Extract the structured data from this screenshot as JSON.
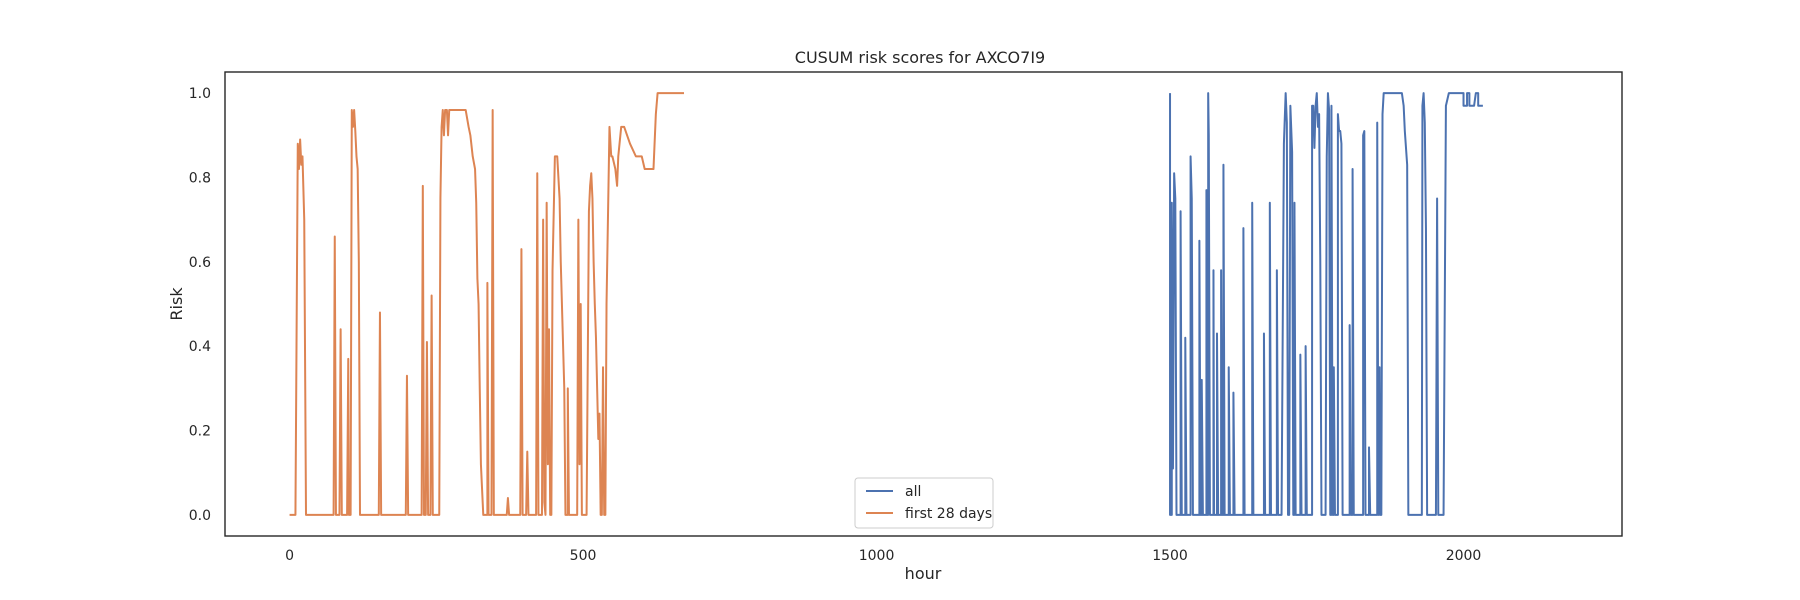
{
  "chart_data": {
    "type": "line",
    "title": "CUSUM risk scores for AXCO7I9",
    "xlabel": "hour",
    "ylabel": "Risk",
    "xlim": [
      -110,
      2270
    ],
    "ylim": [
      -0.05,
      1.05
    ],
    "xticks": [
      0,
      500,
      1000,
      1500,
      2000
    ],
    "xtick_labels": [
      "0",
      "500",
      "1000",
      "1500",
      "2000"
    ],
    "yticks": [
      0.0,
      0.2,
      0.4,
      0.6,
      0.8,
      1.0
    ],
    "ytick_labels": [
      "0.0",
      "0.2",
      "0.4",
      "0.6",
      "0.8",
      "1.0"
    ],
    "grid": false,
    "legend_position": "lower center",
    "series": [
      {
        "name": "all",
        "color": "#4c72b0",
        "points": [
          [
            1500,
            1.0
          ],
          [
            1500,
            0.0
          ],
          [
            1503,
            0.0
          ],
          [
            1503,
            0.74
          ],
          [
            1505,
            0.11
          ],
          [
            1507,
            0.81
          ],
          [
            1509,
            0.75
          ],
          [
            1511,
            0.0
          ],
          [
            1518,
            0.0
          ],
          [
            1518,
            0.72
          ],
          [
            1520,
            0.0
          ],
          [
            1526,
            0.0
          ],
          [
            1526,
            0.42
          ],
          [
            1528,
            0.0
          ],
          [
            1535,
            0.0
          ],
          [
            1535,
            0.85
          ],
          [
            1537,
            0.75
          ],
          [
            1539,
            0.0
          ],
          [
            1550,
            0.0
          ],
          [
            1550,
            0.65
          ],
          [
            1552,
            0.0
          ],
          [
            1554,
            0.0
          ],
          [
            1554,
            0.32
          ],
          [
            1556,
            0.0
          ],
          [
            1562,
            0.0
          ],
          [
            1562,
            0.77
          ],
          [
            1563,
            0.0
          ],
          [
            1565,
            0.0
          ],
          [
            1565,
            1.0
          ],
          [
            1566,
            0.9
          ],
          [
            1568,
            0.0
          ],
          [
            1574,
            0.0
          ],
          [
            1574,
            0.58
          ],
          [
            1575,
            0.0
          ],
          [
            1580,
            0.0
          ],
          [
            1580,
            0.43
          ],
          [
            1582,
            0.0
          ],
          [
            1587,
            0.0
          ],
          [
            1587,
            0.58
          ],
          [
            1589,
            0.0
          ],
          [
            1591,
            0.0
          ],
          [
            1591,
            0.83
          ],
          [
            1593,
            0.0
          ],
          [
            1600,
            0.0
          ],
          [
            1600,
            0.35
          ],
          [
            1602,
            0.0
          ],
          [
            1608,
            0.0
          ],
          [
            1608,
            0.29
          ],
          [
            1610,
            0.0
          ],
          [
            1625,
            0.0
          ],
          [
            1625,
            0.68
          ],
          [
            1627,
            0.0
          ],
          [
            1640,
            0.0
          ],
          [
            1640,
            0.74
          ],
          [
            1642,
            0.0
          ],
          [
            1660,
            0.0
          ],
          [
            1660,
            0.43
          ],
          [
            1662,
            0.0
          ],
          [
            1670,
            0.0
          ],
          [
            1670,
            0.74
          ],
          [
            1672,
            0.0
          ],
          [
            1682,
            0.0
          ],
          [
            1682,
            0.58
          ],
          [
            1684,
            0.0
          ],
          [
            1690,
            0.0
          ],
          [
            1694,
            0.88
          ],
          [
            1697,
            1.0
          ],
          [
            1699,
            0.93
          ],
          [
            1701,
            0.0
          ],
          [
            1703,
            0.0
          ],
          [
            1705,
            0.97
          ],
          [
            1708,
            0.86
          ],
          [
            1710,
            0.0
          ],
          [
            1712,
            0.0
          ],
          [
            1712,
            0.74
          ],
          [
            1714,
            0.0
          ],
          [
            1722,
            0.0
          ],
          [
            1722,
            0.38
          ],
          [
            1724,
            0.0
          ],
          [
            1731,
            0.0
          ],
          [
            1731,
            0.4
          ],
          [
            1733,
            0.0
          ],
          [
            1742,
            0.0
          ],
          [
            1742,
            0.97
          ],
          [
            1744,
            0.97
          ],
          [
            1746,
            0.87
          ],
          [
            1748,
            0.97
          ],
          [
            1750,
            1.0
          ],
          [
            1752,
            0.92
          ],
          [
            1754,
            0.95
          ],
          [
            1756,
            0.6
          ],
          [
            1758,
            0.0
          ],
          [
            1765,
            0.0
          ],
          [
            1767,
            0.85
          ],
          [
            1769,
            1.0
          ],
          [
            1771,
            0.96
          ],
          [
            1773,
            0.0
          ],
          [
            1775,
            0.0
          ],
          [
            1775,
            0.97
          ],
          [
            1777,
            0.0
          ],
          [
            1779,
            0.0
          ],
          [
            1779,
            0.35
          ],
          [
            1781,
            0.0
          ],
          [
            1786,
            0.0
          ],
          [
            1786,
            0.95
          ],
          [
            1788,
            0.91
          ],
          [
            1790,
            0.91
          ],
          [
            1792,
            0.88
          ],
          [
            1794,
            0.0
          ],
          [
            1806,
            0.0
          ],
          [
            1806,
            0.45
          ],
          [
            1808,
            0.0
          ],
          [
            1811,
            0.0
          ],
          [
            1811,
            0.82
          ],
          [
            1813,
            0.0
          ],
          [
            1829,
            0.0
          ],
          [
            1829,
            0.9
          ],
          [
            1831,
            0.91
          ],
          [
            1833,
            0.0
          ],
          [
            1839,
            0.0
          ],
          [
            1839,
            0.16
          ],
          [
            1841,
            0.0
          ],
          [
            1853,
            0.0
          ],
          [
            1853,
            0.93
          ],
          [
            1855,
            0.0
          ],
          [
            1856,
            0.0
          ],
          [
            1857,
            0.35
          ],
          [
            1858,
            0.0
          ],
          [
            1860,
            0.0
          ],
          [
            1862,
            0.95
          ],
          [
            1864,
            1.0
          ],
          [
            1895,
            1.0
          ],
          [
            1898,
            0.97
          ],
          [
            1900,
            0.91
          ],
          [
            1904,
            0.83
          ],
          [
            1906,
            0.0
          ],
          [
            1929,
            0.0
          ],
          [
            1930,
            0.97
          ],
          [
            1932,
            1.0
          ],
          [
            1934,
            0.93
          ],
          [
            1936,
            0.68
          ],
          [
            1938,
            0.0
          ],
          [
            1953,
            0.0
          ],
          [
            1953,
            0.0
          ],
          [
            1955,
            0.75
          ],
          [
            1957,
            0.0
          ],
          [
            1966,
            0.0
          ],
          [
            1970,
            0.97
          ],
          [
            1975,
            1.0
          ],
          [
            1990,
            1.0
          ],
          [
            2000,
            1.0
          ],
          [
            2000,
            0.97
          ],
          [
            2006,
            0.97
          ],
          [
            2006,
            1.0
          ],
          [
            2010,
            1.0
          ],
          [
            2010,
            0.97
          ],
          [
            2012,
            0.97
          ],
          [
            2015,
            0.97
          ],
          [
            2018,
            0.97
          ],
          [
            2021,
            1.0
          ],
          [
            2025,
            1.0
          ],
          [
            2025,
            0.97
          ],
          [
            2032,
            0.97
          ],
          [
            2033,
            0.97
          ],
          [
            2033,
            0.97
          ],
          [
            2033,
            0.97
          ]
        ]
      },
      {
        "name": "first 28 days",
        "color": "#dd8452",
        "points": [
          [
            0,
            0.0
          ],
          [
            10,
            0.0
          ],
          [
            14,
            0.88
          ],
          [
            16,
            0.82
          ],
          [
            18,
            0.89
          ],
          [
            20,
            0.83
          ],
          [
            22,
            0.85
          ],
          [
            25,
            0.7
          ],
          [
            28,
            0.0
          ],
          [
            75,
            0.0
          ],
          [
            77,
            0.66
          ],
          [
            79,
            0.0
          ],
          [
            85,
            0.0
          ],
          [
            87,
            0.44
          ],
          [
            89,
            0.0
          ],
          [
            98,
            0.0
          ],
          [
            100,
            0.37
          ],
          [
            101,
            0.0
          ],
          [
            104,
            0.0
          ],
          [
            106,
            0.96
          ],
          [
            108,
            0.92
          ],
          [
            110,
            0.96
          ],
          [
            112,
            0.91
          ],
          [
            114,
            0.85
          ],
          [
            116,
            0.82
          ],
          [
            118,
            0.6
          ],
          [
            120,
            0.0
          ],
          [
            152,
            0.0
          ],
          [
            154,
            0.48
          ],
          [
            156,
            0.0
          ],
          [
            198,
            0.0
          ],
          [
            200,
            0.33
          ],
          [
            202,
            0.0
          ],
          [
            225,
            0.0
          ],
          [
            227,
            0.78
          ],
          [
            229,
            0.0
          ],
          [
            232,
            0.0
          ],
          [
            234,
            0.41
          ],
          [
            236,
            0.0
          ],
          [
            240,
            0.0
          ],
          [
            242,
            0.52
          ],
          [
            244,
            0.0
          ],
          [
            255,
            0.0
          ],
          [
            257,
            0.75
          ],
          [
            259,
            0.92
          ],
          [
            261,
            0.96
          ],
          [
            263,
            0.9
          ],
          [
            265,
            0.96
          ],
          [
            268,
            0.96
          ],
          [
            270,
            0.9
          ],
          [
            272,
            0.96
          ],
          [
            275,
            0.96
          ],
          [
            300,
            0.96
          ],
          [
            305,
            0.92
          ],
          [
            308,
            0.9
          ],
          [
            312,
            0.85
          ],
          [
            316,
            0.82
          ],
          [
            318,
            0.74
          ],
          [
            320,
            0.56
          ],
          [
            322,
            0.5
          ],
          [
            324,
            0.3
          ],
          [
            326,
            0.12
          ],
          [
            328,
            0.06
          ],
          [
            330,
            0.0
          ],
          [
            337,
            0.0
          ],
          [
            337,
            0.55
          ],
          [
            339,
            0.0
          ],
          [
            344,
            0.0
          ],
          [
            346,
            0.96
          ],
          [
            348,
            0.0
          ],
          [
            370,
            0.0
          ],
          [
            372,
            0.04
          ],
          [
            374,
            0.0
          ],
          [
            393,
            0.0
          ],
          [
            395,
            0.63
          ],
          [
            397,
            0.0
          ],
          [
            403,
            0.0
          ],
          [
            405,
            0.15
          ],
          [
            407,
            0.0
          ],
          [
            420,
            0.0
          ],
          [
            422,
            0.81
          ],
          [
            424,
            0.0
          ],
          [
            430,
            0.0
          ],
          [
            432,
            0.7
          ],
          [
            434,
            0.03
          ],
          [
            436,
            0.0
          ],
          [
            438,
            0.74
          ],
          [
            440,
            0.12
          ],
          [
            442,
            0.44
          ],
          [
            444,
            0.0
          ],
          [
            446,
            0.0
          ],
          [
            448,
            0.58
          ],
          [
            452,
            0.85
          ],
          [
            456,
            0.85
          ],
          [
            460,
            0.75
          ],
          [
            462,
            0.6
          ],
          [
            465,
            0.45
          ],
          [
            468,
            0.3
          ],
          [
            470,
            0.0
          ],
          [
            474,
            0.0
          ],
          [
            474,
            0.3
          ],
          [
            476,
            0.0
          ],
          [
            490,
            0.0
          ],
          [
            492,
            0.7
          ],
          [
            494,
            0.12
          ],
          [
            496,
            0.5
          ],
          [
            498,
            0.0
          ],
          [
            506,
            0.0
          ],
          [
            510,
            0.72
          ],
          [
            512,
            0.78
          ],
          [
            514,
            0.81
          ],
          [
            516,
            0.75
          ],
          [
            518,
            0.6
          ],
          [
            520,
            0.5
          ],
          [
            522,
            0.42
          ],
          [
            524,
            0.3
          ],
          [
            526,
            0.18
          ],
          [
            528,
            0.24
          ],
          [
            530,
            0.0
          ],
          [
            532,
            0.0
          ],
          [
            534,
            0.35
          ],
          [
            536,
            0.0
          ],
          [
            538,
            0.0
          ],
          [
            540,
            0.5
          ],
          [
            545,
            0.92
          ],
          [
            548,
            0.85
          ],
          [
            550,
            0.85
          ],
          [
            555,
            0.82
          ],
          [
            558,
            0.78
          ],
          [
            560,
            0.85
          ],
          [
            565,
            0.92
          ],
          [
            570,
            0.92
          ],
          [
            580,
            0.88
          ],
          [
            590,
            0.85
          ],
          [
            600,
            0.85
          ],
          [
            605,
            0.82
          ],
          [
            620,
            0.82
          ],
          [
            624,
            0.95
          ],
          [
            627,
            1.0
          ],
          [
            630,
            1.0
          ],
          [
            672,
            1.0
          ]
        ]
      }
    ]
  }
}
